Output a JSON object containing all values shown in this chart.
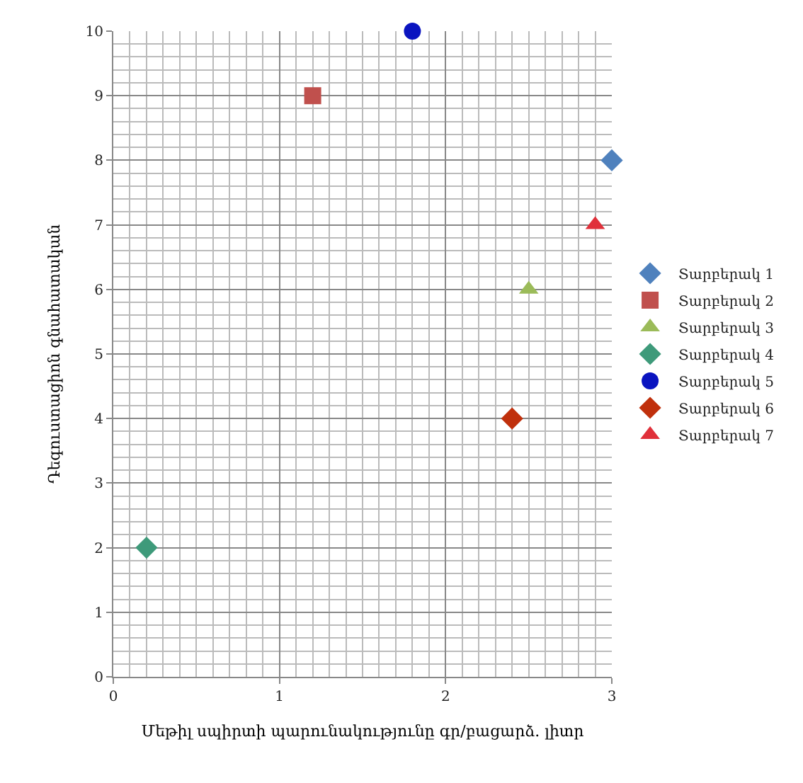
{
  "chart_data": {
    "type": "scatter",
    "xlabel": "Մեթիլ սպիրտի պարունակությունը գր/բացարձ. լիտր",
    "ylabel": "Դեգուստացիոն գնահատական",
    "xlim": [
      0,
      3
    ],
    "xticks": [
      0,
      1,
      2,
      3
    ],
    "ylim": [
      0,
      10
    ],
    "yticks": [
      0,
      1,
      2,
      3,
      4,
      5,
      6,
      7,
      8,
      9,
      10
    ],
    "grid": true,
    "legend": "right",
    "series": [
      {
        "name": "Տարբերակ 1",
        "color": "#4f81bd",
        "marker": "diamond",
        "x": [
          3
        ],
        "values": [
          8
        ]
      },
      {
        "name": "Տարբերակ 2",
        "color": "#c0504d",
        "marker": "square",
        "x": [
          1.2
        ],
        "values": [
          9
        ]
      },
      {
        "name": "Տարբերակ 3",
        "color": "#9bbb59",
        "marker": "triangle",
        "x": [
          2.5
        ],
        "values": [
          6
        ]
      },
      {
        "name": "Տարբերակ 4",
        "color": "#3e9a7a",
        "marker": "diamond",
        "x": [
          0.2
        ],
        "values": [
          2
        ]
      },
      {
        "name": "Տարբերակ 5",
        "color": "#0a14c0",
        "marker": "circle",
        "x": [
          1.8
        ],
        "values": [
          10
        ]
      },
      {
        "name": "Տարբերակ 6",
        "color": "#c0300c",
        "marker": "diamond",
        "x": [
          2.4
        ],
        "values": [
          4
        ]
      },
      {
        "name": "Տարբերակ 7",
        "color": "#e0303a",
        "marker": "triangle",
        "x": [
          2.9
        ],
        "values": [
          7
        ]
      }
    ]
  }
}
